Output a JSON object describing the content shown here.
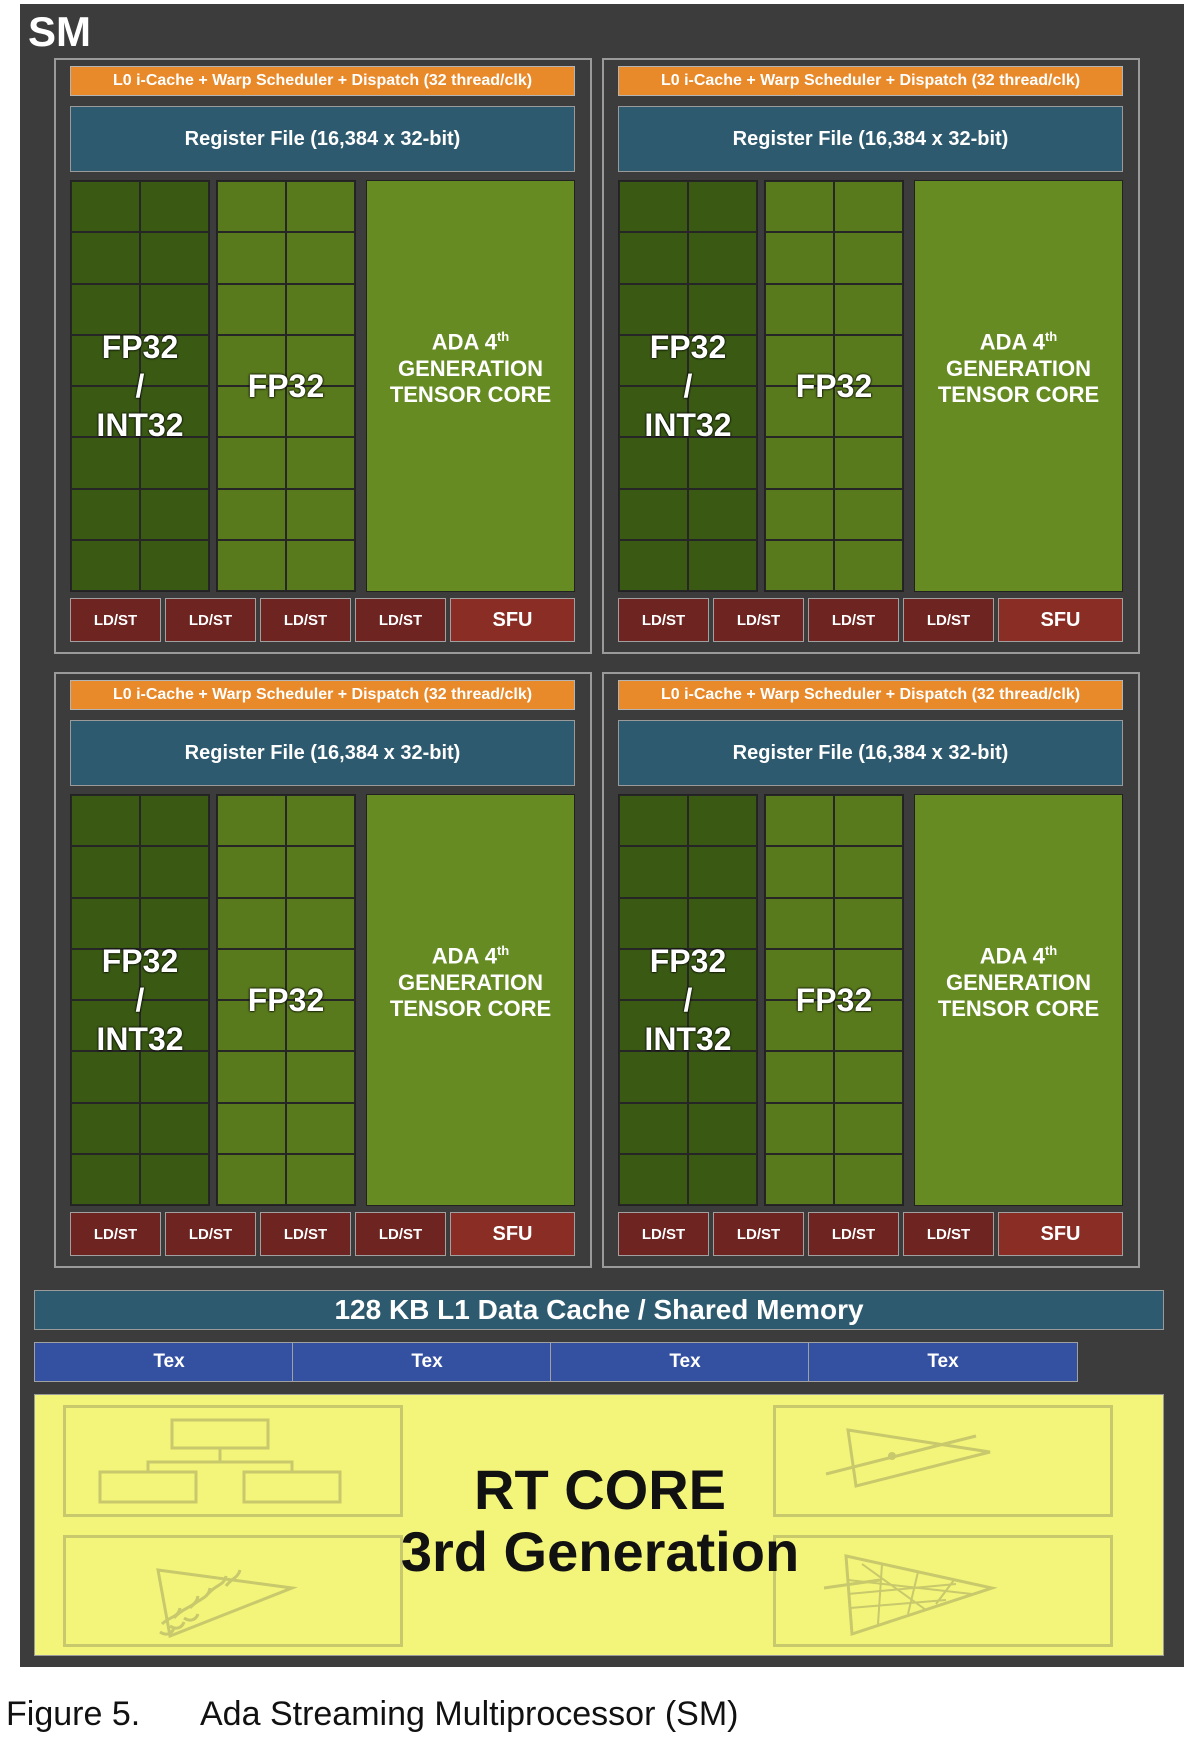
{
  "sm": {
    "title": "SM"
  },
  "partition": {
    "scheduler_label": "L0 i-Cache + Warp Scheduler + Dispatch (32 thread/clk)",
    "register_file_label": "Register File (16,384 x 32-bit)",
    "fp32_int32": {
      "line1": "FP32",
      "line2": "/",
      "line3": "INT32"
    },
    "fp32_label": "FP32",
    "tensor": {
      "line1": "ADA 4",
      "sup": "th",
      "line2": "GENERATION",
      "line3": "TENSOR CORE"
    },
    "ldst_label": "LD/ST",
    "sfu_label": "SFU"
  },
  "l1_cache_label": "128 KB L1 Data Cache / Shared Memory",
  "tex_units": [
    "Tex",
    "Tex",
    "Tex",
    "Tex"
  ],
  "rt_core": {
    "line1": "RT CORE",
    "line2": "3rd Generation"
  },
  "caption": {
    "number": "Figure 5.",
    "text": "Ada Streaming Multiprocessor (SM)"
  },
  "colors": {
    "sm_background": "#3c3c3c",
    "scheduler": "#e8892a",
    "register_file": "#2d5a6e",
    "fp32_int32_core": "#3a5a14",
    "fp32_core": "#587a1c",
    "tensor_core": "#658b22",
    "ldst": "#6e2420",
    "sfu": "#8a2d25",
    "tex": "#3450a0",
    "rt_core": "#f3f57a"
  }
}
